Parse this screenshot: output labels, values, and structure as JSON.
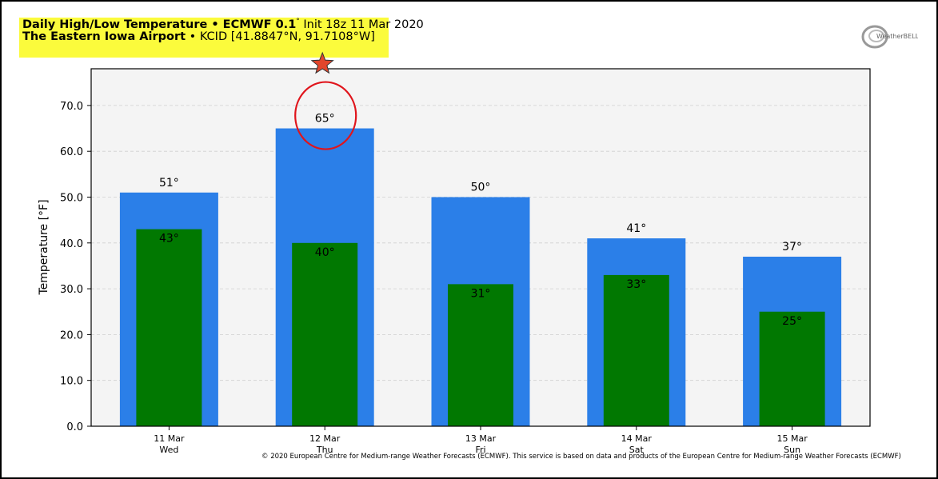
{
  "header": {
    "title_bold": "Daily High/Low Temperature • ECMWF 0.1",
    "title_deg": "°",
    "title_rest": " Init 18z 11 Mar 2020",
    "location_bold": "The Eastern Iowa Airport",
    "location_rest": " • KCID [41.8847°N, 91.7108°W]"
  },
  "logo_text": "WeatherBELL",
  "copyright": "© 2020 European Centre for Medium-range Weather Forecasts (ECMWF). This service is based on data and products of the European Centre for Medium-range Weather Forecasts (ECMWF)",
  "colors": {
    "high": "#2b7fe8",
    "low": "#017801",
    "highlight": "#fbfb3c",
    "annotation": "#e0151c",
    "star": "#e2462c"
  },
  "annotation": {
    "circled_category": "12 Mar",
    "star_marker": true
  },
  "chart_data": {
    "type": "bar",
    "categories": [
      "11 Mar",
      "12 Mar",
      "13 Mar",
      "14 Mar",
      "15 Mar"
    ],
    "days": [
      "Wed",
      "Thu",
      "Fri",
      "Sat",
      "Sun"
    ],
    "series": [
      {
        "key": "high",
        "values": [
          51,
          65,
          50,
          41,
          37
        ],
        "labels": [
          "51°",
          "65°",
          "50°",
          "41°",
          "37°"
        ]
      },
      {
        "key": "low",
        "values": [
          43,
          40,
          31,
          33,
          25
        ],
        "labels": [
          "43°",
          "40°",
          "31°",
          "33°",
          "25°"
        ]
      }
    ],
    "ylabel": "Temperature [°F]",
    "ylim": [
      0,
      78
    ],
    "yticks": [
      "0.0",
      "10.0",
      "20.0",
      "30.0",
      "40.0",
      "50.0",
      "60.0",
      "70.0"
    ],
    "grid": "horizontal dashed"
  }
}
